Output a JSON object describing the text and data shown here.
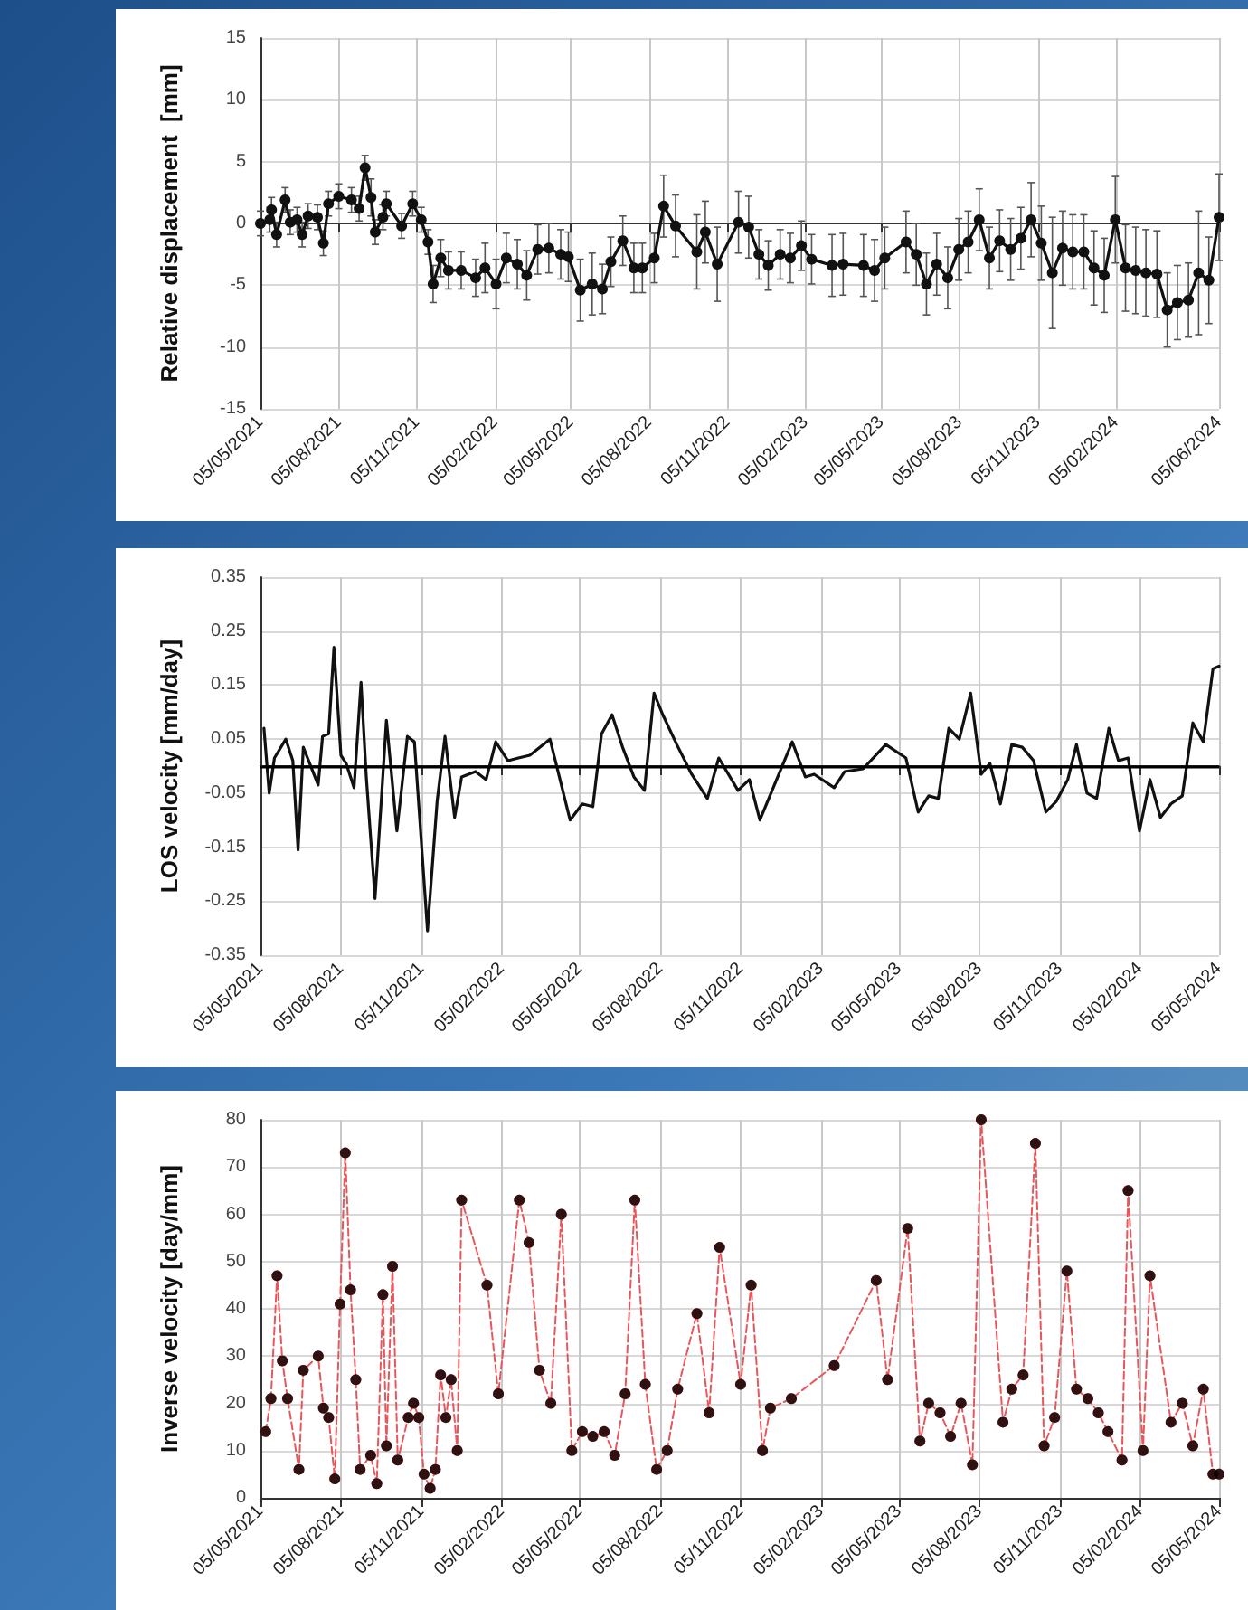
{
  "chart_data": [
    {
      "type": "line",
      "ylabel": "Relative displacement  [mm]",
      "marker": "circle",
      "line_style": "solid",
      "grid": true,
      "xlim": [
        "2021-05-05",
        "2024-06-05"
      ],
      "xticks": [
        {
          "value": "2021-05-05",
          "label": "05/05/2021"
        },
        {
          "value": "2021-08-05",
          "label": "05/08/2021"
        },
        {
          "value": "2021-11-05",
          "label": "05/11/2021"
        },
        {
          "value": "2022-02-05",
          "label": "05/02/2022"
        },
        {
          "value": "2022-05-05",
          "label": "05/05/2022"
        },
        {
          "value": "2022-08-05",
          "label": "05/08/2022"
        },
        {
          "value": "2022-11-05",
          "label": "05/11/2022"
        },
        {
          "value": "2023-02-05",
          "label": "05/02/2023"
        },
        {
          "value": "2023-05-05",
          "label": "05/05/2023"
        },
        {
          "value": "2023-08-05",
          "label": "05/08/2023"
        },
        {
          "value": "2023-11-05",
          "label": "05/11/2023"
        },
        {
          "value": "2024-02-05",
          "label": "05/02/2024"
        },
        {
          "value": "2024-06-05",
          "label": "05/06/2024"
        }
      ],
      "ylim": [
        -15,
        15
      ],
      "yticks": [
        -15,
        -10,
        -5,
        0,
        5,
        10,
        15
      ],
      "x": [
        "2021-05-05",
        "2021-05-16",
        "2021-05-18",
        "2021-05-24",
        "2021-06-03",
        "2021-06-09",
        "2021-06-17",
        "2021-06-23",
        "2021-06-30",
        "2021-07-11",
        "2021-07-18",
        "2021-07-24",
        "2021-08-05",
        "2021-08-20",
        "2021-08-29",
        "2021-09-05",
        "2021-09-12",
        "2021-09-17",
        "2021-09-26",
        "2021-09-30",
        "2021-10-18",
        "2021-10-31",
        "2021-11-10",
        "2021-11-18",
        "2021-11-24",
        "2021-12-03",
        "2021-12-12",
        "2021-12-27",
        "2022-01-13",
        "2022-01-24",
        "2022-02-06",
        "2022-02-18",
        "2022-03-03",
        "2022-03-14",
        "2022-03-27",
        "2022-04-09",
        "2022-04-23",
        "2022-05-02",
        "2022-05-16",
        "2022-05-30",
        "2022-06-11",
        "2022-06-21",
        "2022-07-05",
        "2022-07-18",
        "2022-07-28",
        "2022-08-11",
        "2022-08-22",
        "2022-09-05",
        "2022-09-30",
        "2022-10-10",
        "2022-10-24",
        "2022-11-18",
        "2022-11-30",
        "2022-12-12",
        "2022-12-23",
        "2023-01-06",
        "2023-01-18",
        "2023-01-31",
        "2023-02-12",
        "2023-03-08",
        "2023-03-21",
        "2023-04-14",
        "2023-04-27",
        "2023-05-09",
        "2023-06-03",
        "2023-06-15",
        "2023-06-27",
        "2023-07-09",
        "2023-07-22",
        "2023-08-04",
        "2023-08-15",
        "2023-08-28",
        "2023-09-09",
        "2023-09-21",
        "2023-10-04",
        "2023-10-16",
        "2023-10-28",
        "2023-11-09",
        "2023-11-22",
        "2023-12-04",
        "2023-12-16",
        "2023-12-29",
        "2024-01-10",
        "2024-01-22",
        "2024-02-04",
        "2024-02-16",
        "2024-02-28",
        "2024-03-11",
        "2024-03-24",
        "2024-04-05",
        "2024-04-17",
        "2024-04-30",
        "2024-05-12",
        "2024-05-24",
        "2024-06-05"
      ],
      "series": [
        {
          "color": "#111111",
          "values": [
            0,
            0.3,
            1.1,
            -0.9,
            1.9,
            0.1,
            0.3,
            -0.9,
            0.6,
            0.5,
            -1.6,
            1.6,
            2.2,
            1.9,
            1.2,
            4.5,
            2.1,
            -0.7,
            0.5,
            1.6,
            -0.2,
            1.6,
            0.3,
            -1.5,
            -4.9,
            -2.8,
            -3.8,
            -3.8,
            -4.4,
            -3.6,
            -4.9,
            -2.8,
            -3.3,
            -4.2,
            -2.1,
            -2,
            -2.5,
            -2.7,
            -5.4,
            -4.9,
            -5.3,
            -3.1,
            -1.4,
            -3.6,
            -3.6,
            -2.8,
            1.4,
            -0.2,
            -2.3,
            -0.7,
            -3.3,
            0.1,
            -0.3,
            -2.5,
            -3.4,
            -2.5,
            -2.8,
            -1.8,
            -2.9,
            -3.4,
            -3.3,
            -3.4,
            -3.8,
            -2.8,
            -1.5,
            -2.5,
            -4.9,
            -3.3,
            -4.4,
            -2.1,
            -1.5,
            0.3,
            -2.8,
            -1.4,
            -2.1,
            -1.2,
            0.3,
            -1.6,
            -4,
            -2,
            -2.3,
            -2.3,
            -3.6,
            -4.2,
            0.3,
            -3.6,
            -3.8,
            -4,
            -4.1,
            -7,
            -6.4,
            -6.2,
            -4,
            -4.6,
            0.5
          ],
          "errors": [
            1,
            1,
            1,
            1,
            1,
            1,
            1,
            1,
            1,
            1,
            1,
            1,
            1,
            1,
            1,
            1,
            1.5,
            1,
            1,
            1,
            1,
            1,
            1,
            1,
            1.5,
            1.5,
            1.5,
            1.5,
            1.5,
            2,
            2,
            2,
            2,
            2,
            2,
            2,
            2,
            2,
            2.5,
            2.5,
            2,
            2,
            2,
            2,
            2,
            2,
            2.5,
            2.5,
            3,
            2.5,
            3,
            2.5,
            2.5,
            2,
            2,
            2,
            2,
            2,
            2,
            2.5,
            2.5,
            2.5,
            2.5,
            2.5,
            2.5,
            2.5,
            2.5,
            2.5,
            2.5,
            2.5,
            2.5,
            2.5,
            2.5,
            2.5,
            2.5,
            2.5,
            3,
            3,
            4.5,
            3,
            3,
            3,
            3,
            3,
            3.5,
            3.5,
            3.5,
            3.5,
            3.5,
            3,
            3,
            3,
            5,
            3.5,
            3.5
          ]
        }
      ]
    },
    {
      "type": "line",
      "ylabel": "LOS velocity [mm/day]",
      "marker": "none",
      "line_style": "solid",
      "grid": true,
      "xlim": [
        "2021-05-05",
        "2024-05-05"
      ],
      "xticks": [
        {
          "value": "2021-05-05",
          "label": "05/05/2021"
        },
        {
          "value": "2021-08-05",
          "label": "05/08/2021"
        },
        {
          "value": "2021-11-05",
          "label": "05/11/2021"
        },
        {
          "value": "2022-02-05",
          "label": "05/02/2022"
        },
        {
          "value": "2022-05-05",
          "label": "05/05/2022"
        },
        {
          "value": "2022-08-05",
          "label": "05/08/2022"
        },
        {
          "value": "2022-11-05",
          "label": "05/11/2022"
        },
        {
          "value": "2023-02-05",
          "label": "05/02/2023"
        },
        {
          "value": "2023-05-05",
          "label": "05/05/2023"
        },
        {
          "value": "2023-08-05",
          "label": "05/08/2023"
        },
        {
          "value": "2023-11-05",
          "label": "05/11/2023"
        },
        {
          "value": "2024-02-05",
          "label": "05/02/2024"
        },
        {
          "value": "2024-05-05",
          "label": "05/05/2024"
        }
      ],
      "ylim": [
        -0.35,
        0.35
      ],
      "yticks": [
        -0.35,
        -0.25,
        -0.15,
        -0.05,
        0.05,
        0.15,
        0.25,
        0.35
      ],
      "ref_lines": [
        {
          "axis": "y",
          "value": 0,
          "color": "#000000"
        }
      ],
      "x": [
        "2021-05-09",
        "2021-05-15",
        "2021-05-21",
        "2021-06-03",
        "2021-06-11",
        "2021-06-17",
        "2021-06-23",
        "2021-07-10",
        "2021-07-15",
        "2021-07-22",
        "2021-07-28",
        "2021-08-05",
        "2021-08-11",
        "2021-08-20",
        "2021-08-28",
        "2021-09-03",
        "2021-09-13",
        "2021-09-26",
        "2021-10-08",
        "2021-10-20",
        "2021-10-28",
        "2021-11-12",
        "2021-11-23",
        "2021-12-02",
        "2021-12-13",
        "2021-12-21",
        "2022-01-06",
        "2022-01-18",
        "2022-01-29",
        "2022-02-12",
        "2022-02-24",
        "2022-03-09",
        "2022-04-01",
        "2022-04-24",
        "2022-05-08",
        "2022-05-20",
        "2022-05-30",
        "2022-06-11",
        "2022-06-23",
        "2022-07-06",
        "2022-07-18",
        "2022-07-29",
        "2022-08-08",
        "2022-08-24",
        "2022-09-10",
        "2022-09-28",
        "2022-10-11",
        "2022-11-02",
        "2022-11-15",
        "2022-11-27",
        "2023-01-03",
        "2023-01-18",
        "2023-01-28",
        "2023-02-20",
        "2023-03-04",
        "2023-03-25",
        "2023-04-20",
        "2023-05-13",
        "2023-05-27",
        "2023-06-08",
        "2023-06-19",
        "2023-07-01",
        "2023-07-13",
        "2023-07-26",
        "2023-08-07",
        "2023-08-17",
        "2023-08-29",
        "2023-09-11",
        "2023-09-23",
        "2023-10-06",
        "2023-10-20",
        "2023-11-01",
        "2023-11-14",
        "2023-11-24",
        "2023-12-06",
        "2023-12-17",
        "2023-12-31",
        "2024-01-11",
        "2024-01-22",
        "2024-02-04",
        "2024-02-16",
        "2024-02-28",
        "2024-03-11",
        "2024-03-24",
        "2024-04-05",
        "2024-04-17",
        "2024-04-28",
        "2024-05-05"
      ],
      "series": [
        {
          "color": "#111111",
          "values": [
            0.07,
            -0.05,
            0.015,
            0.05,
            0.01,
            -0.155,
            0.035,
            -0.035,
            0.055,
            0.06,
            0.22,
            0.02,
            0.005,
            -0.04,
            0.155,
            -0.02,
            -0.245,
            0.085,
            -0.12,
            0.055,
            0.045,
            -0.305,
            -0.065,
            0.055,
            -0.095,
            -0.02,
            -0.01,
            -0.025,
            0.045,
            0.01,
            0.015,
            0.02,
            0.05,
            -0.1,
            -0.07,
            -0.075,
            0.06,
            0.095,
            0.035,
            -0.02,
            -0.045,
            0.135,
            0.095,
            0.04,
            -0.015,
            -0.06,
            0.015,
            -0.045,
            -0.025,
            -0.1,
            0.045,
            -0.02,
            -0.015,
            -0.04,
            -0.01,
            -0.005,
            0.04,
            0.015,
            -0.085,
            -0.055,
            -0.06,
            0.07,
            0.05,
            0.135,
            -0.015,
            0.005,
            -0.07,
            0.04,
            0.035,
            0.01,
            -0.085,
            -0.065,
            -0.025,
            0.04,
            -0.05,
            -0.06,
            0.07,
            0.01,
            0.015,
            -0.12,
            -0.025,
            -0.095,
            -0.07,
            -0.055,
            0.08,
            0.045,
            0.18,
            0.185
          ]
        }
      ]
    },
    {
      "type": "scatter",
      "ylabel": "Inverse velocity [day/mm]",
      "marker": "circle",
      "grid": true,
      "xlim": [
        "2021-05-05",
        "2024-05-05"
      ],
      "xticks": [
        {
          "value": "2021-05-05",
          "label": "05/05/2021"
        },
        {
          "value": "2021-08-05",
          "label": "05/08/2021"
        },
        {
          "value": "2021-11-05",
          "label": "05/11/2021"
        },
        {
          "value": "2022-02-05",
          "label": "05/02/2022"
        },
        {
          "value": "2022-05-05",
          "label": "05/05/2022"
        },
        {
          "value": "2022-08-05",
          "label": "05/08/2022"
        },
        {
          "value": "2022-11-05",
          "label": "05/11/2022"
        },
        {
          "value": "2023-02-05",
          "label": "05/02/2023"
        },
        {
          "value": "2023-05-05",
          "label": "05/05/2023"
        },
        {
          "value": "2023-08-05",
          "label": "05/08/2023"
        },
        {
          "value": "2023-11-05",
          "label": "05/11/2023"
        },
        {
          "value": "2024-02-05",
          "label": "05/02/2024"
        },
        {
          "value": "2024-05-05",
          "label": "05/05/2024"
        }
      ],
      "ylim": [
        0,
        80
      ],
      "yticks": [
        0,
        10,
        20,
        30,
        40,
        50,
        60,
        70,
        80
      ],
      "x": [
        "2021-05-11",
        "2021-05-17",
        "2021-05-24",
        "2021-05-30",
        "2021-06-05",
        "2021-06-18",
        "2021-06-23",
        "2021-07-10",
        "2021-07-16",
        "2021-07-22",
        "2021-07-29",
        "2021-08-04",
        "2021-08-10",
        "2021-08-16",
        "2021-08-22",
        "2021-08-27",
        "2021-09-08",
        "2021-09-15",
        "2021-09-22",
        "2021-09-26",
        "2021-10-03",
        "2021-10-09",
        "2021-10-21",
        "2021-10-27",
        "2021-11-02",
        "2021-11-08",
        "2021-11-15",
        "2021-11-21",
        "2021-11-27",
        "2021-12-03",
        "2021-12-09",
        "2021-12-16",
        "2021-12-21",
        "2022-01-19",
        "2022-02-01",
        "2022-02-25",
        "2022-03-08",
        "2022-03-20",
        "2022-04-02",
        "2022-04-14",
        "2022-04-26",
        "2022-05-08",
        "2022-05-20",
        "2022-06-02",
        "2022-06-14",
        "2022-06-26",
        "2022-07-07",
        "2022-07-19",
        "2022-08-01",
        "2022-08-13",
        "2022-08-25",
        "2022-09-16",
        "2022-09-30",
        "2022-10-12",
        "2022-11-05",
        "2022-11-17",
        "2022-11-30",
        "2022-12-09",
        "2023-01-02",
        "2023-02-20",
        "2023-04-09",
        "2023-04-22",
        "2023-05-15",
        "2023-05-29",
        "2023-06-08",
        "2023-06-21",
        "2023-07-03",
        "2023-07-15",
        "2023-07-28",
        "2023-08-07",
        "2023-09-01",
        "2023-09-11",
        "2023-09-24",
        "2023-10-08",
        "2023-10-18",
        "2023-10-30",
        "2023-11-13",
        "2023-11-24",
        "2023-12-07",
        "2023-12-19",
        "2023-12-30",
        "2024-01-15",
        "2024-01-22",
        "2024-02-08",
        "2024-02-16",
        "2024-03-11",
        "2024-03-24",
        "2024-04-05",
        "2024-04-17",
        "2024-04-28",
        "2024-05-05"
      ],
      "series": [
        {
          "color": "#000000",
          "type": "scatter",
          "values": [
            14,
            21,
            47,
            29,
            21,
            6,
            27,
            30,
            19,
            17,
            4,
            41,
            73,
            44,
            25,
            6,
            9,
            3,
            43,
            11,
            49,
            8,
            17,
            20,
            17,
            5,
            2,
            6,
            26,
            17,
            25,
            10,
            63,
            45,
            22,
            63,
            54,
            27,
            20,
            60,
            10,
            14,
            13,
            14,
            9,
            22,
            63,
            24,
            6,
            10,
            23,
            39,
            18,
            53,
            24,
            45,
            10,
            19,
            21,
            28,
            46,
            25,
            57,
            12,
            20,
            18,
            13,
            20,
            7,
            80,
            16,
            23,
            26,
            75,
            11,
            17,
            48,
            23,
            21,
            18,
            14,
            8,
            65,
            10,
            47,
            16,
            20,
            11,
            23,
            5,
            5
          ]
        },
        {
          "color": "#e8565a",
          "type": "line",
          "line_style": "dashed",
          "values": [
            14,
            21,
            47,
            29,
            21,
            6,
            27,
            30,
            19,
            17,
            4,
            41,
            73,
            44,
            25,
            6,
            9,
            3,
            43,
            11,
            49,
            8,
            17,
            20,
            17,
            5,
            2,
            6,
            26,
            17,
            25,
            10,
            63,
            45,
            22,
            63,
            54,
            27,
            20,
            60,
            10,
            14,
            13,
            14,
            9,
            22,
            63,
            24,
            6,
            10,
            23,
            39,
            18,
            53,
            24,
            45,
            10,
            19,
            21,
            28,
            46,
            25,
            57,
            12,
            20,
            18,
            13,
            20,
            7,
            80,
            16,
            23,
            26,
            75,
            11,
            17,
            48,
            23,
            21,
            18,
            14,
            8,
            65,
            10,
            47,
            16,
            20,
            11,
            23,
            5,
            5
          ]
        }
      ]
    }
  ]
}
